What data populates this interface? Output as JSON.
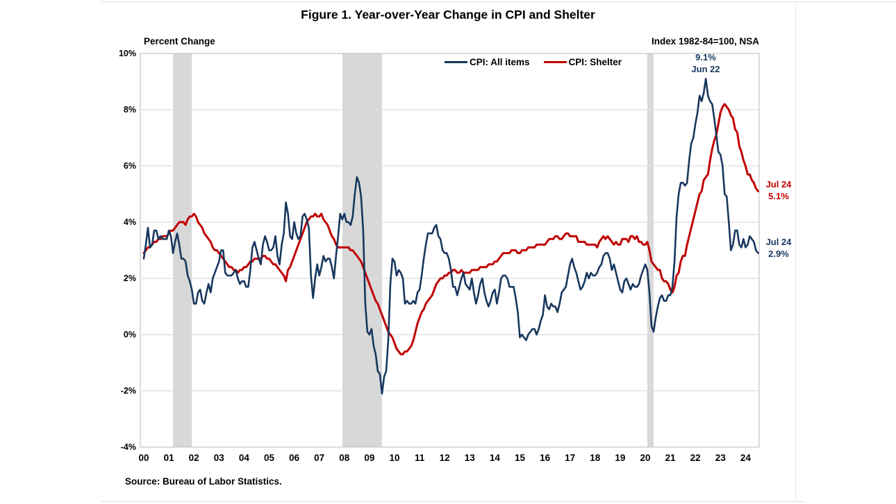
{
  "title": "Figure 1. Year-over-Year Change in CPI and Shelter",
  "left_axis_note": "Percent Change",
  "right_axis_note": "Index 1982-84=100, NSA",
  "source": "Source: Bureau of Labor Statistics.",
  "annotations": {
    "peak": {
      "line1": "9.1%",
      "line2": "Jun 22"
    },
    "shelter_end": {
      "line1": "Jul 24",
      "line2": "5.1%"
    },
    "cpi_end": {
      "line1": "Jul 24",
      "line2": "2.9%"
    }
  },
  "colors": {
    "cpi_line": "#17375E",
    "shelter_line": "#C00000",
    "gridline": "#DCDCDC",
    "recession_band": "#D8D8D8",
    "plot_border": "#C8C8C8"
  },
  "chart_data": {
    "type": "line",
    "title": "Figure 1. Year-over-Year Change in CPI and Shelter",
    "ylabel": "Percent Change",
    "right_label": "Index 1982-84=100, NSA",
    "ylim": [
      -4,
      10
    ],
    "ytick_labels": [
      "10%",
      "8%",
      "6%",
      "4%",
      "2%",
      "0%",
      "-2%",
      "-4%"
    ],
    "ytick_values": [
      10,
      8,
      6,
      4,
      2,
      0,
      -2,
      -4
    ],
    "x_tick_labels": [
      "00",
      "01",
      "02",
      "03",
      "04",
      "05",
      "06",
      "07",
      "08",
      "09",
      "10",
      "11",
      "12",
      "13",
      "14",
      "15",
      "16",
      "17",
      "18",
      "19",
      "20",
      "21",
      "22",
      "23",
      "24"
    ],
    "x_start": "2000-01",
    "x_end": "2024-07",
    "frequency": "monthly",
    "grid": "horizontal-only",
    "legend_position": "top-center",
    "recession_shading_years": [
      [
        2001.17,
        2001.92
      ],
      [
        2007.92,
        2009.5
      ],
      [
        2020.08,
        2020.33
      ]
    ],
    "series": [
      {
        "name": "CPI: All items",
        "color": "#17375E",
        "end_label": "Jul 24 2.9%",
        "peak_label": "9.1% Jun 22",
        "values": [
          2.7,
          3.2,
          3.8,
          3.1,
          3.2,
          3.7,
          3.7,
          3.4,
          3.5,
          3.4,
          3.4,
          3.4,
          3.7,
          3.5,
          2.9,
          3.3,
          3.6,
          3.2,
          2.7,
          2.7,
          2.6,
          2.1,
          1.9,
          1.6,
          1.1,
          1.1,
          1.5,
          1.6,
          1.2,
          1.1,
          1.5,
          1.8,
          1.5,
          2.0,
          2.2,
          2.4,
          2.6,
          3.0,
          3.0,
          2.2,
          2.1,
          2.1,
          2.1,
          2.2,
          2.3,
          2.0,
          1.8,
          1.9,
          1.9,
          1.7,
          1.7,
          2.3,
          3.1,
          3.3,
          3.0,
          2.7,
          2.5,
          3.2,
          3.5,
          3.3,
          3.0,
          3.0,
          3.1,
          3.5,
          2.8,
          2.5,
          3.2,
          3.6,
          4.7,
          4.3,
          3.5,
          3.4,
          4.0,
          3.6,
          3.4,
          3.5,
          4.2,
          4.3,
          4.1,
          3.8,
          2.1,
          1.3,
          2.0,
          2.5,
          2.1,
          2.4,
          2.8,
          2.6,
          2.7,
          2.7,
          2.4,
          2.0,
          2.8,
          3.5,
          4.3,
          4.1,
          4.3,
          4.0,
          4.0,
          3.9,
          4.2,
          5.0,
          5.6,
          5.4,
          4.9,
          3.7,
          1.1,
          0.1,
          0.0,
          0.2,
          -0.4,
          -0.7,
          -1.3,
          -1.4,
          -2.1,
          -1.5,
          -1.3,
          -0.2,
          1.8,
          2.7,
          2.6,
          2.1,
          2.3,
          2.2,
          2.0,
          1.1,
          1.2,
          1.1,
          1.1,
          1.2,
          1.1,
          1.5,
          1.6,
          2.1,
          2.7,
          3.2,
          3.6,
          3.6,
          3.6,
          3.8,
          3.9,
          3.5,
          3.4,
          3.0,
          2.9,
          2.9,
          2.7,
          2.3,
          1.7,
          1.7,
          1.4,
          1.7,
          2.0,
          2.2,
          1.8,
          1.7,
          1.6,
          2.0,
          1.5,
          1.1,
          1.4,
          1.8,
          2.0,
          1.5,
          1.2,
          1.0,
          1.2,
          1.5,
          1.6,
          1.1,
          1.5,
          2.0,
          2.1,
          2.1,
          2.0,
          1.7,
          1.7,
          1.7,
          1.3,
          0.8,
          -0.1,
          0.0,
          -0.1,
          -0.2,
          0.0,
          0.1,
          0.2,
          0.2,
          0.0,
          0.2,
          0.5,
          0.7,
          1.4,
          1.0,
          0.9,
          1.1,
          1.0,
          1.0,
          0.8,
          1.1,
          1.5,
          1.6,
          1.7,
          2.1,
          2.5,
          2.7,
          2.4,
          2.2,
          1.9,
          1.6,
          1.7,
          1.9,
          2.2,
          2.0,
          2.2,
          2.1,
          2.1,
          2.2,
          2.4,
          2.5,
          2.8,
          2.9,
          2.9,
          2.7,
          2.3,
          2.5,
          2.2,
          1.9,
          1.6,
          1.5,
          1.9,
          2.0,
          1.8,
          1.6,
          1.8,
          1.7,
          1.7,
          1.8,
          2.1,
          2.3,
          2.5,
          2.3,
          1.5,
          0.3,
          0.1,
          0.6,
          1.0,
          1.3,
          1.4,
          1.2,
          1.2,
          1.4,
          1.4,
          1.7,
          2.6,
          4.2,
          5.0,
          5.4,
          5.4,
          5.3,
          5.4,
          6.2,
          6.8,
          7.0,
          7.5,
          7.9,
          8.5,
          8.3,
          8.6,
          9.1,
          8.5,
          8.3,
          8.2,
          7.7,
          7.1,
          6.5,
          6.4,
          6.0,
          5.0,
          4.9,
          4.0,
          3.0,
          3.2,
          3.7,
          3.7,
          3.2,
          3.1,
          3.4,
          3.1,
          3.2,
          3.5,
          3.4,
          3.3,
          3.0,
          2.9
        ]
      },
      {
        "name": "CPI: Shelter",
        "color": "#C00000",
        "end_label": "Jul 24 5.1%",
        "values": [
          2.9,
          3.0,
          3.1,
          3.1,
          3.2,
          3.3,
          3.3,
          3.4,
          3.4,
          3.5,
          3.5,
          3.5,
          3.6,
          3.7,
          3.7,
          3.8,
          3.9,
          4.0,
          4.0,
          4.0,
          3.9,
          4.1,
          4.2,
          4.2,
          4.3,
          4.2,
          4.0,
          3.9,
          3.8,
          3.6,
          3.5,
          3.4,
          3.3,
          3.1,
          3.0,
          3.0,
          2.9,
          2.8,
          2.7,
          2.6,
          2.5,
          2.4,
          2.4,
          2.3,
          2.3,
          2.2,
          2.3,
          2.3,
          2.4,
          2.4,
          2.5,
          2.6,
          2.6,
          2.7,
          2.7,
          2.7,
          2.7,
          2.8,
          2.8,
          2.7,
          2.7,
          2.6,
          2.5,
          2.5,
          2.4,
          2.3,
          2.2,
          2.1,
          1.9,
          2.3,
          2.4,
          2.6,
          2.8,
          3.0,
          3.2,
          3.4,
          3.6,
          3.8,
          4.0,
          4.1,
          4.2,
          4.2,
          4.3,
          4.2,
          4.2,
          4.3,
          4.1,
          4.0,
          3.9,
          3.7,
          3.5,
          3.4,
          3.2,
          3.1,
          3.1,
          3.1,
          3.1,
          3.1,
          3.1,
          3.0,
          3.0,
          2.9,
          2.8,
          2.7,
          2.6,
          2.4,
          2.2,
          2.0,
          1.8,
          1.6,
          1.4,
          1.2,
          1.1,
          0.9,
          0.7,
          0.5,
          0.3,
          0.1,
          0.0,
          -0.1,
          -0.3,
          -0.5,
          -0.6,
          -0.7,
          -0.7,
          -0.6,
          -0.6,
          -0.5,
          -0.4,
          -0.2,
          0.1,
          0.4,
          0.6,
          0.8,
          0.9,
          1.1,
          1.2,
          1.3,
          1.4,
          1.6,
          1.8,
          1.9,
          2.0,
          2.0,
          2.1,
          2.1,
          2.2,
          2.2,
          2.3,
          2.3,
          2.2,
          2.2,
          2.3,
          2.2,
          2.2,
          2.2,
          2.2,
          2.3,
          2.3,
          2.3,
          2.3,
          2.4,
          2.4,
          2.4,
          2.4,
          2.5,
          2.5,
          2.5,
          2.6,
          2.6,
          2.7,
          2.8,
          2.9,
          2.9,
          2.9,
          2.9,
          3.0,
          3.0,
          3.0,
          2.9,
          2.9,
          3.0,
          3.0,
          3.0,
          3.1,
          3.1,
          3.1,
          3.1,
          3.2,
          3.2,
          3.2,
          3.2,
          3.2,
          3.3,
          3.4,
          3.4,
          3.4,
          3.5,
          3.5,
          3.4,
          3.4,
          3.5,
          3.6,
          3.6,
          3.5,
          3.5,
          3.5,
          3.5,
          3.3,
          3.3,
          3.3,
          3.3,
          3.2,
          3.2,
          3.2,
          3.2,
          3.2,
          3.1,
          3.3,
          3.4,
          3.5,
          3.4,
          3.5,
          3.4,
          3.3,
          3.2,
          3.3,
          3.2,
          3.2,
          3.4,
          3.4,
          3.4,
          3.3,
          3.5,
          3.5,
          3.4,
          3.5,
          3.3,
          3.3,
          3.2,
          3.2,
          3.3,
          3.0,
          2.6,
          2.5,
          2.4,
          2.3,
          2.3,
          2.0,
          1.9,
          1.9,
          1.8,
          1.6,
          1.5,
          1.7,
          2.1,
          2.2,
          2.6,
          2.8,
          2.8,
          3.2,
          3.5,
          3.8,
          4.1,
          4.4,
          4.7,
          5.0,
          5.1,
          5.5,
          5.6,
          5.7,
          6.2,
          6.6,
          6.9,
          7.1,
          7.5,
          7.9,
          8.1,
          8.2,
          8.1,
          8.0,
          7.8,
          7.7,
          7.3,
          7.2,
          6.7,
          6.5,
          6.2,
          6.0,
          5.7,
          5.7,
          5.5,
          5.4,
          5.2,
          5.1
        ]
      }
    ]
  }
}
